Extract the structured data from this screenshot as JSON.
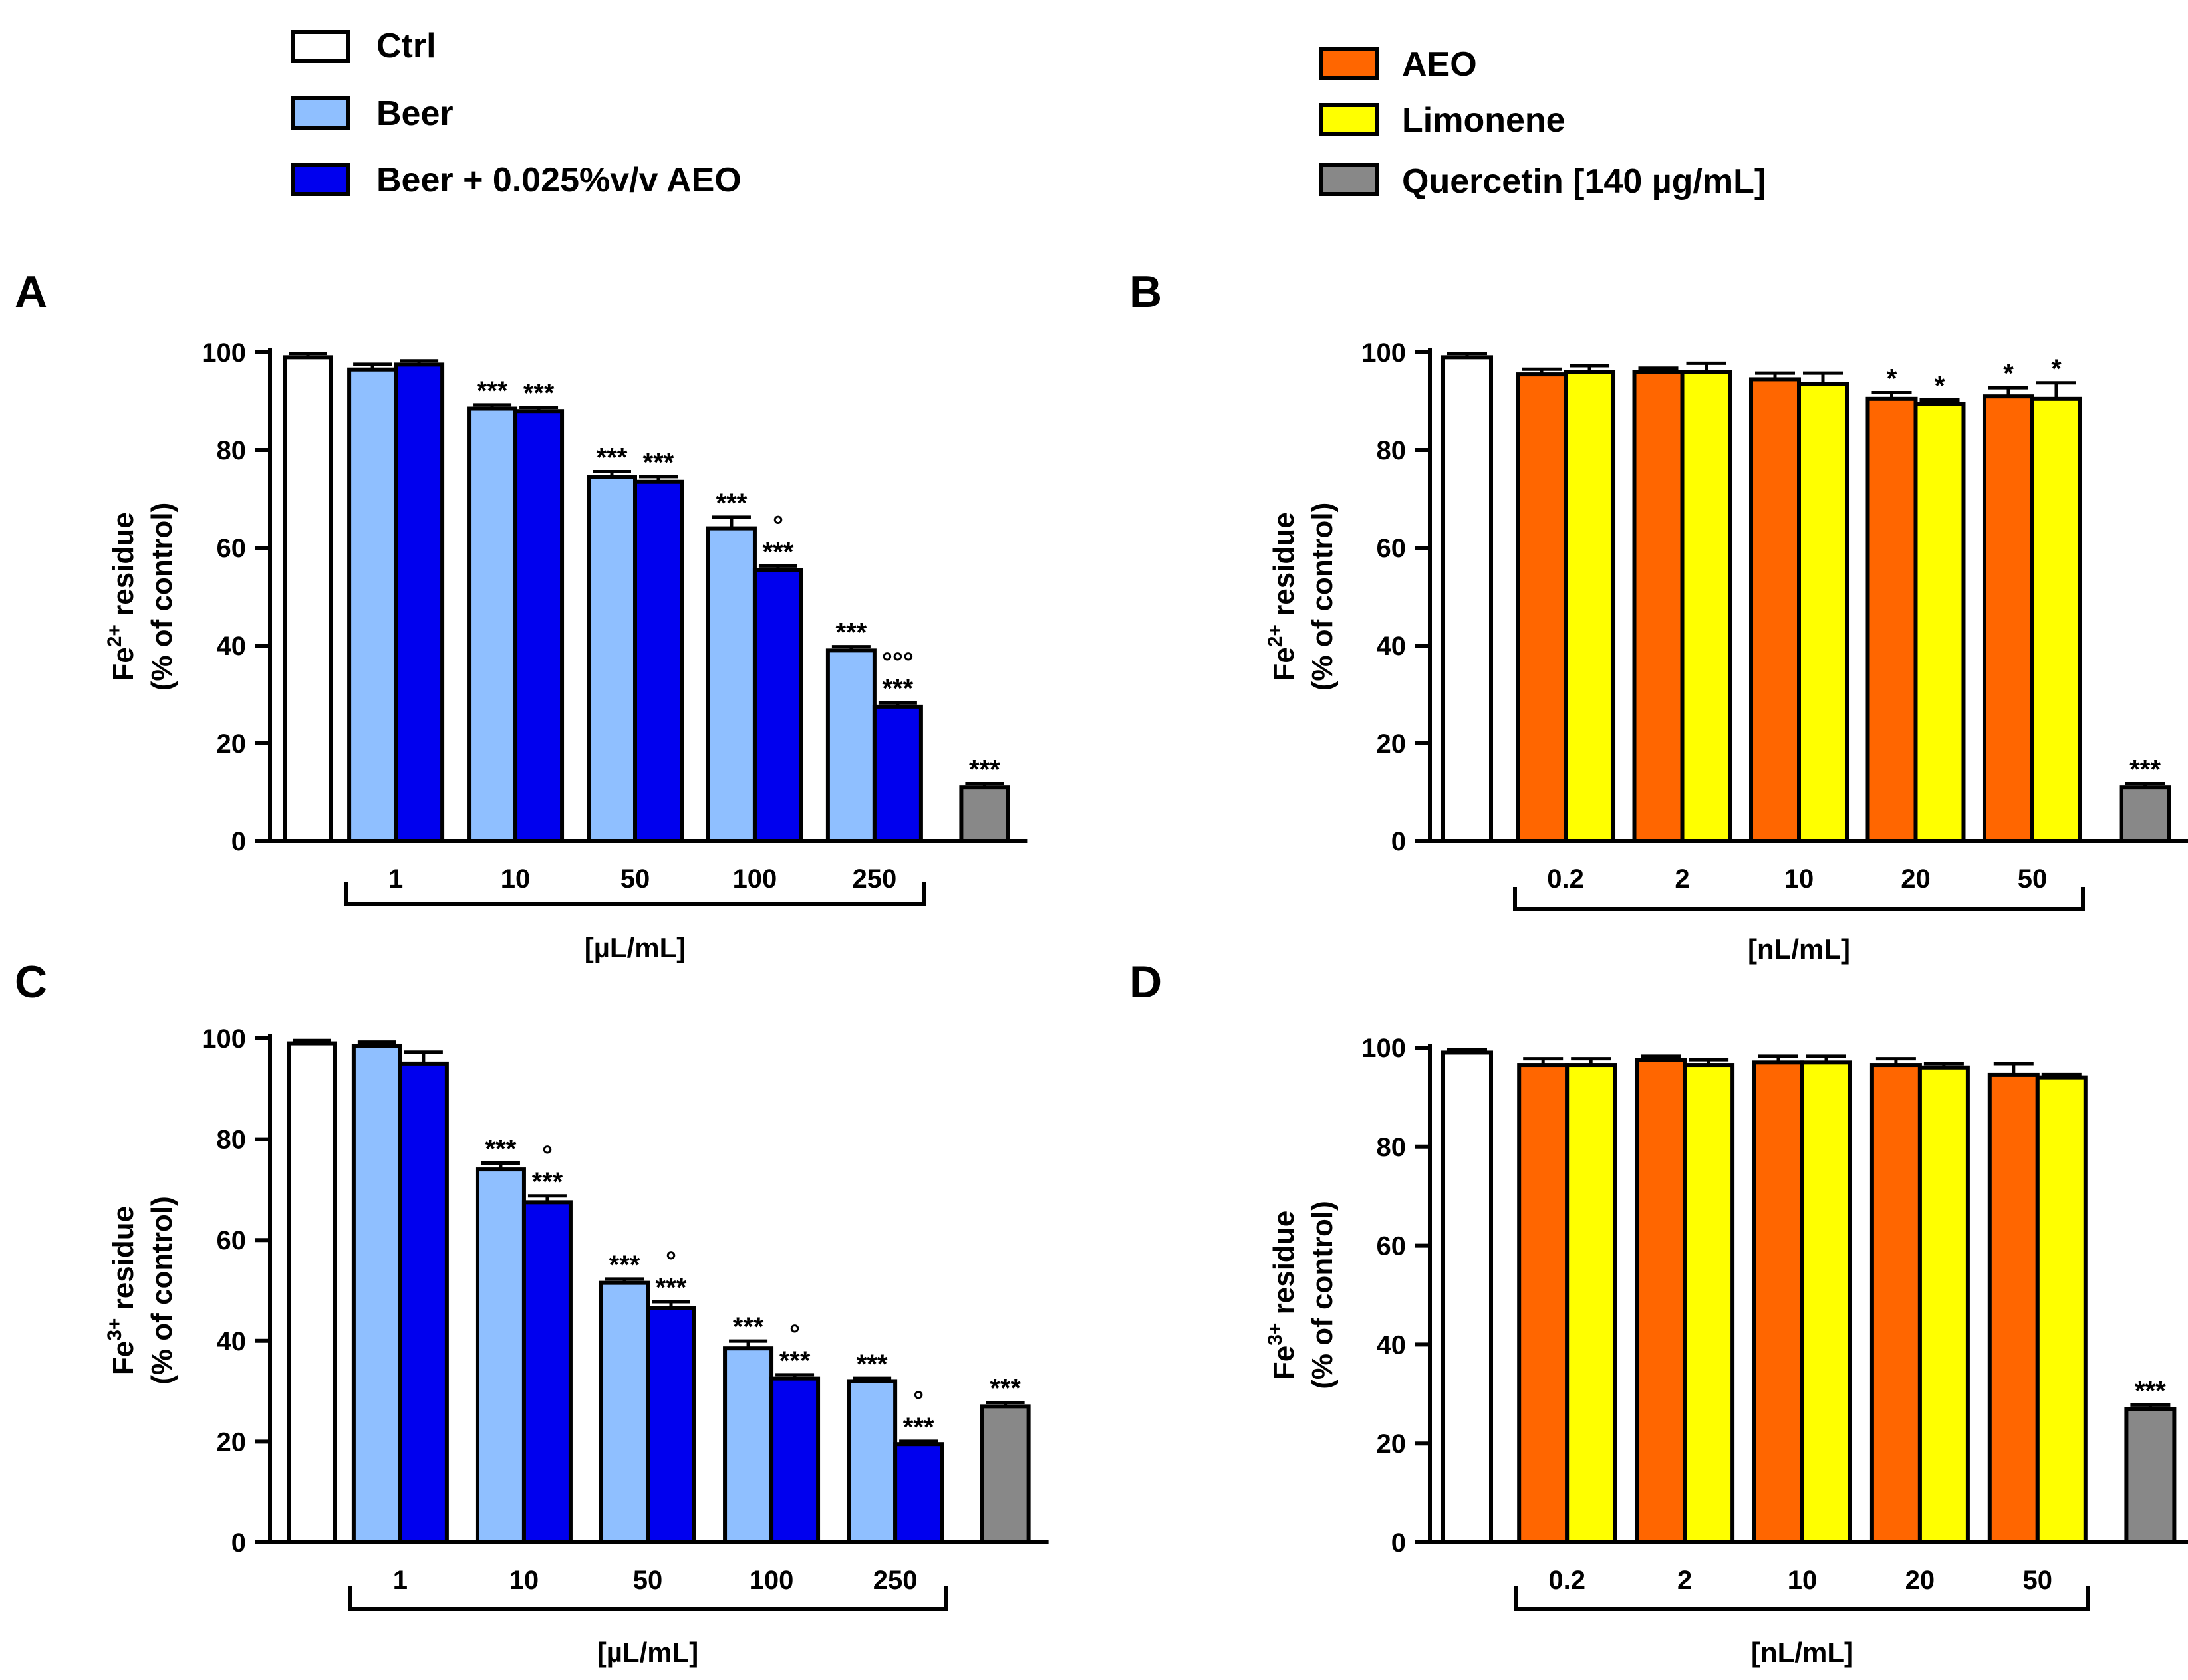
{
  "legend": {
    "left": [
      {
        "label": "Ctrl",
        "color": "#ffffff"
      },
      {
        "label": "Beer",
        "color": "#8fbfff"
      },
      {
        "label": "Beer + 0.025%v/v AEO",
        "color": "#0000ee"
      }
    ],
    "right": [
      {
        "label": "AEO",
        "color": "#ff6600"
      },
      {
        "label": "Limonene",
        "color": "#ffff00"
      },
      {
        "label": "Quercetin [140 µg/mL]",
        "color": "#888888"
      }
    ]
  },
  "chart_data": [
    {
      "panel": "A",
      "type": "bar",
      "ylabel_line1": "Fe",
      "ylabel_sup": "2+",
      "ylabel_rest": " residue",
      "ylabel_line2": "(% of control)",
      "xlabel": "[µL/mL]",
      "ylim": [
        0,
        100
      ],
      "yticks": [
        "0",
        "20",
        "40",
        "60",
        "80",
        "100"
      ],
      "categories": [
        "1",
        "10",
        "50",
        "100",
        "250"
      ],
      "control": {
        "value": 99,
        "err": 0.5,
        "label": ""
      },
      "series": [
        {
          "name": "Beer",
          "color": "#8fbfff",
          "values": [
            96.5,
            88.5,
            74.5,
            64,
            39
          ],
          "errors": [
            0.8,
            0.5,
            0.8,
            2,
            0.5
          ],
          "labels": [
            "",
            "***",
            "***",
            "***",
            "***"
          ],
          "labels2": [
            "",
            "",
            "",
            "",
            ""
          ]
        },
        {
          "name": "Beer + 0.025%v/v AEO",
          "color": "#0000ee",
          "values": [
            97.5,
            88,
            73.5,
            55.5,
            27.5
          ],
          "errors": [
            0.5,
            0.5,
            0.8,
            0.5,
            0.5
          ],
          "labels": [
            "",
            "***",
            "***",
            "***",
            "***"
          ],
          "labels2": [
            "",
            "",
            "",
            "°",
            "°°°"
          ]
        }
      ],
      "quercetin": {
        "value": 11,
        "err": 0.5,
        "label": "***"
      }
    },
    {
      "panel": "B",
      "type": "bar",
      "ylabel_line1": "Fe",
      "ylabel_sup": "2+",
      "ylabel_rest": " residue",
      "ylabel_line2": "(% of control)",
      "xlabel": "[nL/mL]",
      "ylim": [
        0,
        100
      ],
      "yticks": [
        "0",
        "20",
        "40",
        "60",
        "80",
        "100"
      ],
      "categories": [
        "0.2",
        "2",
        "10",
        "20",
        "50"
      ],
      "control": {
        "value": 99,
        "err": 0.5,
        "label": ""
      },
      "series": [
        {
          "name": "AEO",
          "color": "#ff6600",
          "values": [
            95.5,
            96,
            94.5,
            90.5,
            91
          ],
          "errors": [
            0.8,
            0.5,
            1,
            1,
            1.5
          ],
          "labels": [
            "",
            "",
            "",
            "*",
            "*"
          ],
          "labels2": [
            "",
            "",
            "",
            "",
            ""
          ]
        },
        {
          "name": "Limonene",
          "color": "#ffff00",
          "values": [
            96,
            96,
            93.5,
            89.5,
            90.5
          ],
          "errors": [
            1,
            1.5,
            2,
            0.5,
            3
          ],
          "labels": [
            "",
            "",
            "",
            "*",
            "*"
          ],
          "labels2": [
            "",
            "",
            "",
            "",
            ""
          ]
        }
      ],
      "quercetin": {
        "value": 11,
        "err": 0.5,
        "label": "***"
      }
    },
    {
      "panel": "C",
      "type": "bar",
      "ylabel_line1": "Fe",
      "ylabel_sup": "3+",
      "ylabel_rest": " residue",
      "ylabel_line2": "(% of control)",
      "xlabel": "[µL/mL]",
      "ylim": [
        0,
        100
      ],
      "yticks": [
        "0",
        "20",
        "40",
        "60",
        "80",
        "100"
      ],
      "categories": [
        "1",
        "10",
        "50",
        "100",
        "250"
      ],
      "control": {
        "value": 99,
        "err": 0.3,
        "label": ""
      },
      "series": [
        {
          "name": "Beer",
          "color": "#8fbfff",
          "values": [
            98.5,
            74,
            51.5,
            38.5,
            32
          ],
          "errors": [
            0.5,
            1,
            0.5,
            1.2,
            0.3
          ],
          "labels": [
            "",
            "***",
            "***",
            "***",
            "***"
          ],
          "labels2": [
            "",
            "",
            "",
            "",
            ""
          ]
        },
        {
          "name": "Beer + 0.025%v/v AEO",
          "color": "#0000ee",
          "values": [
            95,
            67.5,
            46.5,
            32.5,
            19.5
          ],
          "errors": [
            2,
            1,
            1,
            0.5,
            0.3
          ],
          "labels": [
            "",
            "***",
            "***",
            "***",
            "***"
          ],
          "labels2": [
            "",
            "°",
            "°",
            "°",
            "°"
          ]
        }
      ],
      "quercetin": {
        "value": 27,
        "err": 0.5,
        "label": "***"
      }
    },
    {
      "panel": "D",
      "type": "bar",
      "ylabel_line1": "Fe",
      "ylabel_sup": "3+",
      "ylabel_rest": " residue",
      "ylabel_line2": "(% of control)",
      "xlabel": "[nL/mL]",
      "ylim": [
        0,
        100
      ],
      "yticks": [
        "0",
        "20",
        "40",
        "60",
        "80",
        "100"
      ],
      "categories": [
        "0.2",
        "2",
        "10",
        "20",
        "50"
      ],
      "control": {
        "value": 99,
        "err": 0.3,
        "label": ""
      },
      "series": [
        {
          "name": "AEO",
          "color": "#ff6600",
          "values": [
            96.5,
            97.5,
            97,
            96.5,
            94.5
          ],
          "errors": [
            1,
            0.5,
            1,
            1,
            2
          ],
          "labels": [
            "",
            "",
            "",
            "",
            ""
          ],
          "labels2": [
            "",
            "",
            "",
            "",
            ""
          ]
        },
        {
          "name": "Limonene",
          "color": "#ffff00",
          "values": [
            96.5,
            96.5,
            97,
            96,
            94
          ],
          "errors": [
            1,
            0.8,
            1,
            0.5,
            0.3
          ],
          "labels": [
            "",
            "",
            "",
            "",
            ""
          ],
          "labels2": [
            "",
            "",
            "",
            "",
            ""
          ]
        }
      ],
      "quercetin": {
        "value": 27,
        "err": 0.5,
        "label": "***"
      }
    }
  ]
}
